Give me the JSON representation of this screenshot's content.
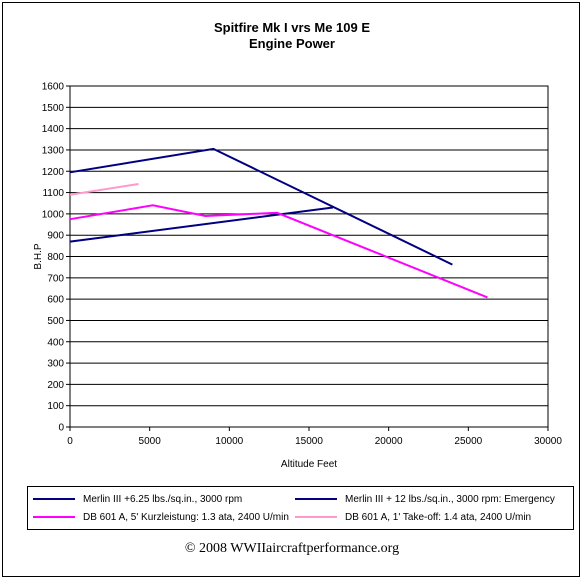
{
  "chart_data": {
    "type": "line",
    "title": "Spitfire Mk I vrs Me 109 E",
    "subtitle": "Engine Power",
    "xlabel": "Altitude Feet",
    "ylabel": "B.H.P",
    "xlim": [
      0,
      30000
    ],
    "ylim": [
      0,
      1600
    ],
    "x_ticks": [
      0,
      5000,
      10000,
      15000,
      20000,
      25000,
      30000
    ],
    "y_ticks": [
      0,
      100,
      200,
      300,
      400,
      500,
      600,
      700,
      800,
      900,
      1000,
      1100,
      1200,
      1300,
      1400,
      1500,
      1600
    ],
    "grid": "y-major",
    "legend_position": "bottom",
    "series": [
      {
        "name": "Merlin III +6.25 lbs./sq.in., 3000 rpm",
        "color": "#000080",
        "points": [
          [
            0,
            870
          ],
          [
            16500,
            1030
          ]
        ]
      },
      {
        "name": "Merlin III + 12 lbs./sq.in., 3000 rpm:  Emergency",
        "color": "#000080",
        "points": [
          [
            0,
            1195
          ],
          [
            9000,
            1305
          ],
          [
            24000,
            762
          ]
        ]
      },
      {
        "name": "DB 601 A,  5' Kurzleistung:  1.3 ata, 2400 U/min",
        "color": "#ff00ff",
        "points": [
          [
            0,
            975
          ],
          [
            5200,
            1040
          ],
          [
            8500,
            990
          ],
          [
            13000,
            1005
          ],
          [
            26200,
            608
          ]
        ]
      },
      {
        "name": "DB 601 A,  1' Take-off:  1.4 ata, 2400 U/min",
        "color": "#ff99cc",
        "points": [
          [
            0,
            1090
          ],
          [
            4300,
            1140
          ]
        ]
      }
    ]
  },
  "copyright": "© 2008 WWIIaircraftperformance.org"
}
